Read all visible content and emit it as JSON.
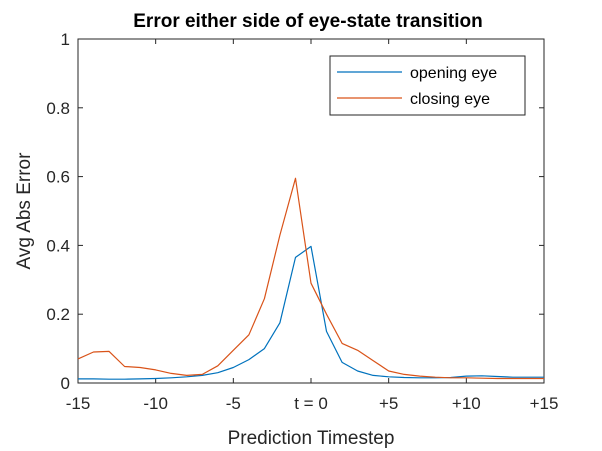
{
  "chart_data": {
    "type": "line",
    "title": "Error either side of eye-state transition",
    "xlabel": "Prediction Timestep",
    "ylabel": "Avg Abs Error",
    "xlim": [
      -15,
      15
    ],
    "ylim": [
      0,
      1
    ],
    "xticks": [
      {
        "value": -15,
        "label": "-15"
      },
      {
        "value": -10,
        "label": "-10"
      },
      {
        "value": -5,
        "label": "-5"
      },
      {
        "value": 0,
        "label": "t = 0"
      },
      {
        "value": 5,
        "label": "+5"
      },
      {
        "value": 10,
        "label": "+10"
      },
      {
        "value": 15,
        "label": "+15"
      }
    ],
    "yticks": [
      {
        "value": 0,
        "label": "0"
      },
      {
        "value": 0.2,
        "label": "0.2"
      },
      {
        "value": 0.4,
        "label": "0.4"
      },
      {
        "value": 0.6,
        "label": "0.6"
      },
      {
        "value": 0.8,
        "label": "0.8"
      },
      {
        "value": 1,
        "label": "1"
      }
    ],
    "grid": false,
    "legend_position": "top-right",
    "series": [
      {
        "name": "opening eye",
        "color": "#0072BD",
        "x": [
          -15,
          -14,
          -13,
          -12,
          -11,
          -10,
          -9,
          -8,
          -7,
          -6,
          -5,
          -4,
          -3,
          -2,
          -1,
          0,
          1,
          2,
          3,
          4,
          5,
          6,
          7,
          8,
          9,
          10,
          11,
          12,
          13,
          14,
          15
        ],
        "y": [
          0.012,
          0.012,
          0.011,
          0.011,
          0.012,
          0.013,
          0.015,
          0.018,
          0.022,
          0.03,
          0.045,
          0.068,
          0.1,
          0.175,
          0.365,
          0.397,
          0.15,
          0.06,
          0.035,
          0.022,
          0.018,
          0.016,
          0.015,
          0.015,
          0.016,
          0.02,
          0.021,
          0.019,
          0.017,
          0.017,
          0.017
        ]
      },
      {
        "name": "closing eye",
        "color": "#D95319",
        "x": [
          -15,
          -14,
          -13,
          -12,
          -11,
          -10,
          -9,
          -8,
          -7,
          -6,
          -5,
          -4,
          -3,
          -2,
          -1,
          0,
          1,
          2,
          3,
          4,
          5,
          6,
          7,
          8,
          9,
          10,
          11,
          12,
          13,
          14,
          15
        ],
        "y": [
          0.07,
          0.09,
          0.092,
          0.048,
          0.045,
          0.038,
          0.028,
          0.022,
          0.025,
          0.05,
          0.095,
          0.14,
          0.245,
          0.43,
          0.595,
          0.29,
          0.2,
          0.115,
          0.095,
          0.065,
          0.035,
          0.025,
          0.02,
          0.017,
          0.015,
          0.015,
          0.014,
          0.013,
          0.013,
          0.013,
          0.013
        ]
      }
    ]
  }
}
